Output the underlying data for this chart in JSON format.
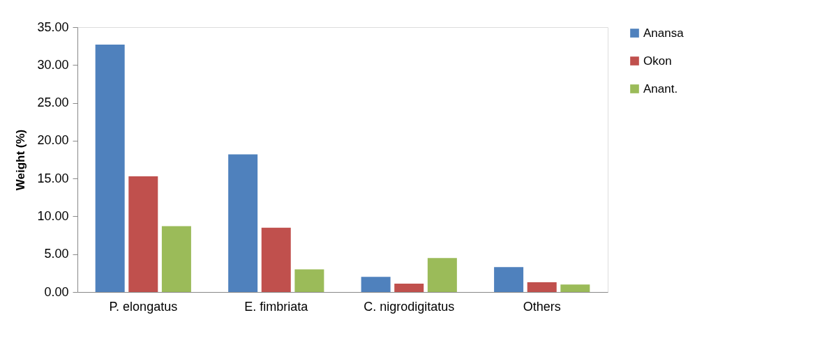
{
  "chart_data": {
    "type": "bar",
    "ylabel": "Weight (%)",
    "categories": [
      "P. elongatus",
      "E. fimbriata",
      "C. nigrodigitatus",
      "Others"
    ],
    "series": [
      {
        "name": "Anansa",
        "color": "#4f81bd",
        "values": [
          32.7,
          18.2,
          2.0,
          3.3
        ]
      },
      {
        "name": "Okon",
        "color": "#c0504d",
        "values": [
          15.3,
          8.5,
          1.1,
          1.3
        ]
      },
      {
        "name": "Anant.",
        "color": "#9bbb59",
        "values": [
          8.7,
          3.0,
          4.5,
          1.0
        ]
      }
    ],
    "ylim": [
      0,
      35
    ],
    "yticks": [
      {
        "value": 0,
        "label": "0.00"
      },
      {
        "value": 5,
        "label": "5.00"
      },
      {
        "value": 10,
        "label": "10.00"
      },
      {
        "value": 15,
        "label": "15.00"
      },
      {
        "value": 20,
        "label": "20.00"
      },
      {
        "value": 25,
        "label": "25.00"
      },
      {
        "value": 30,
        "label": "30.00"
      },
      {
        "value": 35,
        "label": "35.00"
      }
    ],
    "grid": false,
    "legend": "right"
  }
}
